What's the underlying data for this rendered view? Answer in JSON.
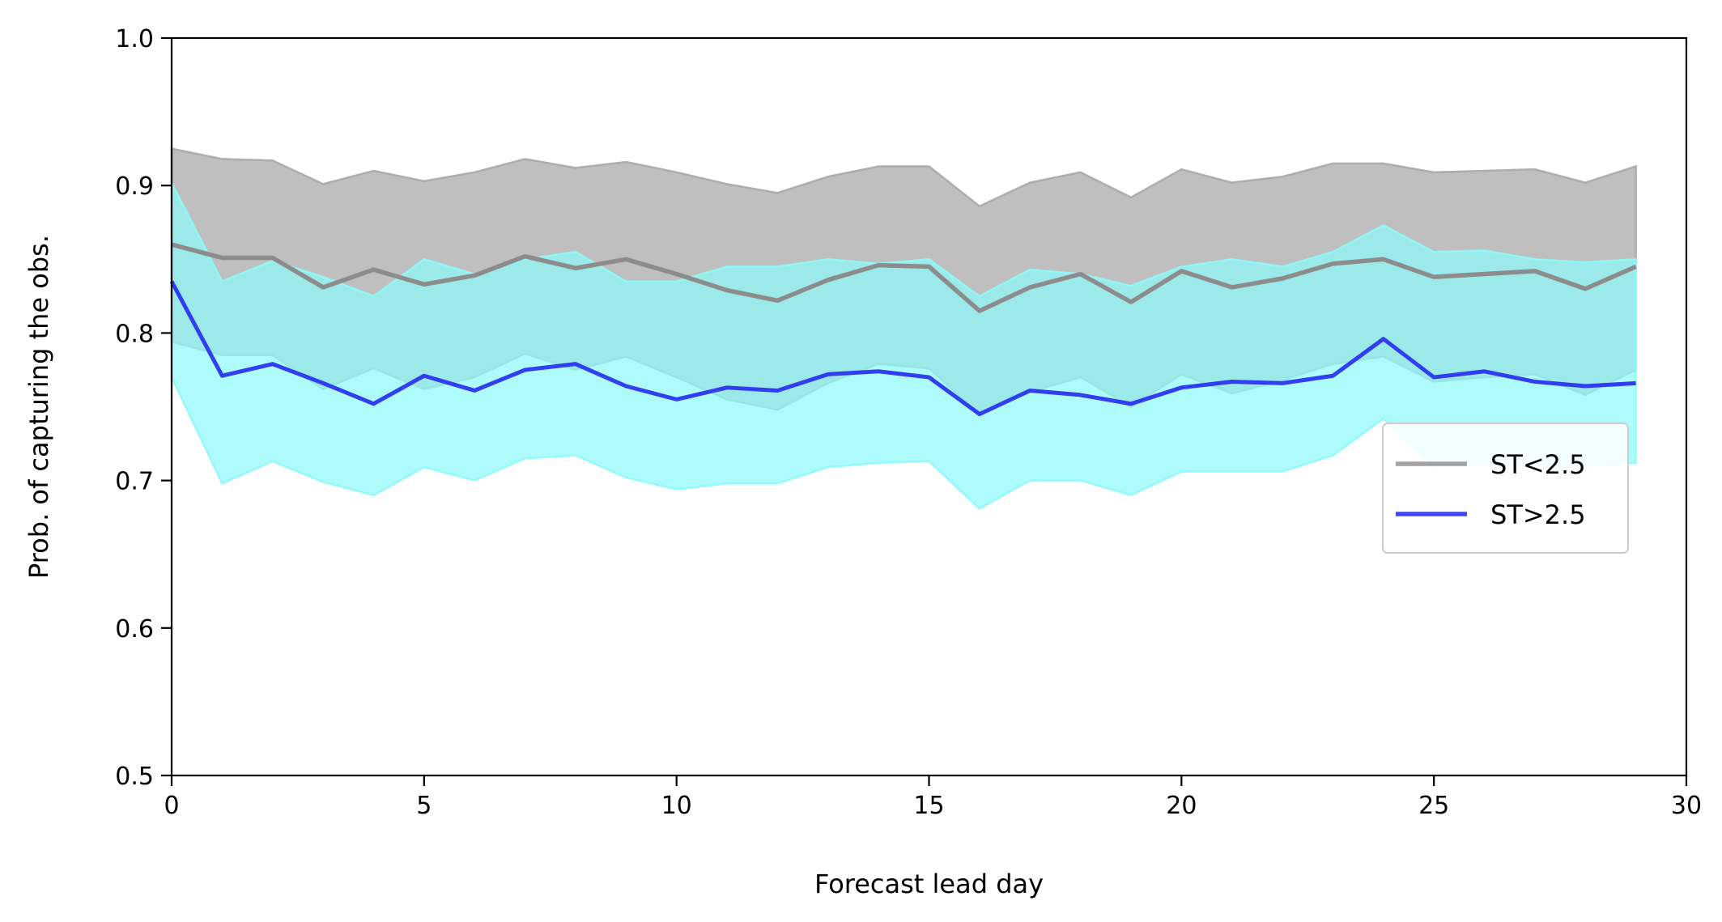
{
  "chart_data": {
    "type": "line",
    "title": "",
    "xlabel": "Forecast lead day",
    "ylabel": "Prob. of capturing the obs.",
    "xlim": [
      0,
      30
    ],
    "ylim": [
      0.5,
      1.0
    ],
    "xticks": [
      "0",
      "5",
      "10",
      "15",
      "20",
      "25",
      "30"
    ],
    "yticks": [
      "0.5",
      "0.6",
      "0.7",
      "0.8",
      "0.9",
      "1.0"
    ],
    "grid": false,
    "legend_position": "center-right",
    "x": [
      0,
      1,
      2,
      3,
      4,
      5,
      6,
      7,
      8,
      9,
      10,
      11,
      12,
      13,
      14,
      15,
      16,
      17,
      18,
      19,
      20,
      21,
      22,
      23,
      24,
      25,
      26,
      27,
      28,
      29
    ],
    "series": [
      {
        "name": "ST<2.5",
        "line_color": "#8c8c8c",
        "band_color": "#a9a9a9",
        "values": [
          0.86,
          0.851,
          0.851,
          0.831,
          0.843,
          0.833,
          0.839,
          0.852,
          0.844,
          0.85,
          0.84,
          0.829,
          0.822,
          0.836,
          0.846,
          0.845,
          0.815,
          0.831,
          0.84,
          0.821,
          0.842,
          0.831,
          0.837,
          0.847,
          0.85,
          0.838,
          0.84,
          0.842,
          0.83,
          0.845
        ],
        "upper": [
          0.925,
          0.918,
          0.917,
          0.901,
          0.91,
          0.903,
          0.909,
          0.918,
          0.912,
          0.916,
          0.909,
          0.901,
          0.895,
          0.906,
          0.913,
          0.913,
          0.886,
          0.902,
          0.909,
          0.892,
          0.911,
          0.902,
          0.906,
          0.915,
          0.915,
          0.909,
          0.91,
          0.911,
          0.902,
          0.913
        ],
        "lower": [
          0.794,
          0.785,
          0.785,
          0.762,
          0.776,
          0.762,
          0.77,
          0.786,
          0.775,
          0.784,
          0.77,
          0.755,
          0.748,
          0.766,
          0.779,
          0.776,
          0.745,
          0.76,
          0.77,
          0.75,
          0.772,
          0.759,
          0.768,
          0.779,
          0.784,
          0.767,
          0.77,
          0.772,
          0.758,
          0.775
        ]
      },
      {
        "name": "ST>2.5",
        "line_color": "#2a35f0",
        "band_color": "#8ff9f9",
        "values": [
          0.835,
          0.771,
          0.779,
          0.766,
          0.752,
          0.771,
          0.761,
          0.775,
          0.779,
          0.764,
          0.755,
          0.763,
          0.761,
          0.772,
          0.774,
          0.77,
          0.745,
          0.761,
          0.758,
          0.752,
          0.763,
          0.767,
          0.766,
          0.771,
          0.796,
          0.77,
          0.774,
          0.767,
          0.764,
          0.766
        ],
        "upper": [
          0.902,
          0.835,
          0.849,
          0.838,
          0.825,
          0.85,
          0.84,
          0.85,
          0.855,
          0.835,
          0.835,
          0.845,
          0.845,
          0.85,
          0.847,
          0.85,
          0.825,
          0.843,
          0.84,
          0.832,
          0.845,
          0.85,
          0.845,
          0.855,
          0.873,
          0.855,
          0.856,
          0.85,
          0.848,
          0.85
        ],
        "lower": [
          0.77,
          0.698,
          0.713,
          0.699,
          0.69,
          0.709,
          0.7,
          0.715,
          0.717,
          0.702,
          0.694,
          0.698,
          0.698,
          0.709,
          0.712,
          0.713,
          0.681,
          0.7,
          0.7,
          0.69,
          0.706,
          0.706,
          0.706,
          0.717,
          0.742,
          0.71,
          0.712,
          0.71,
          0.71,
          0.712
        ]
      }
    ]
  }
}
